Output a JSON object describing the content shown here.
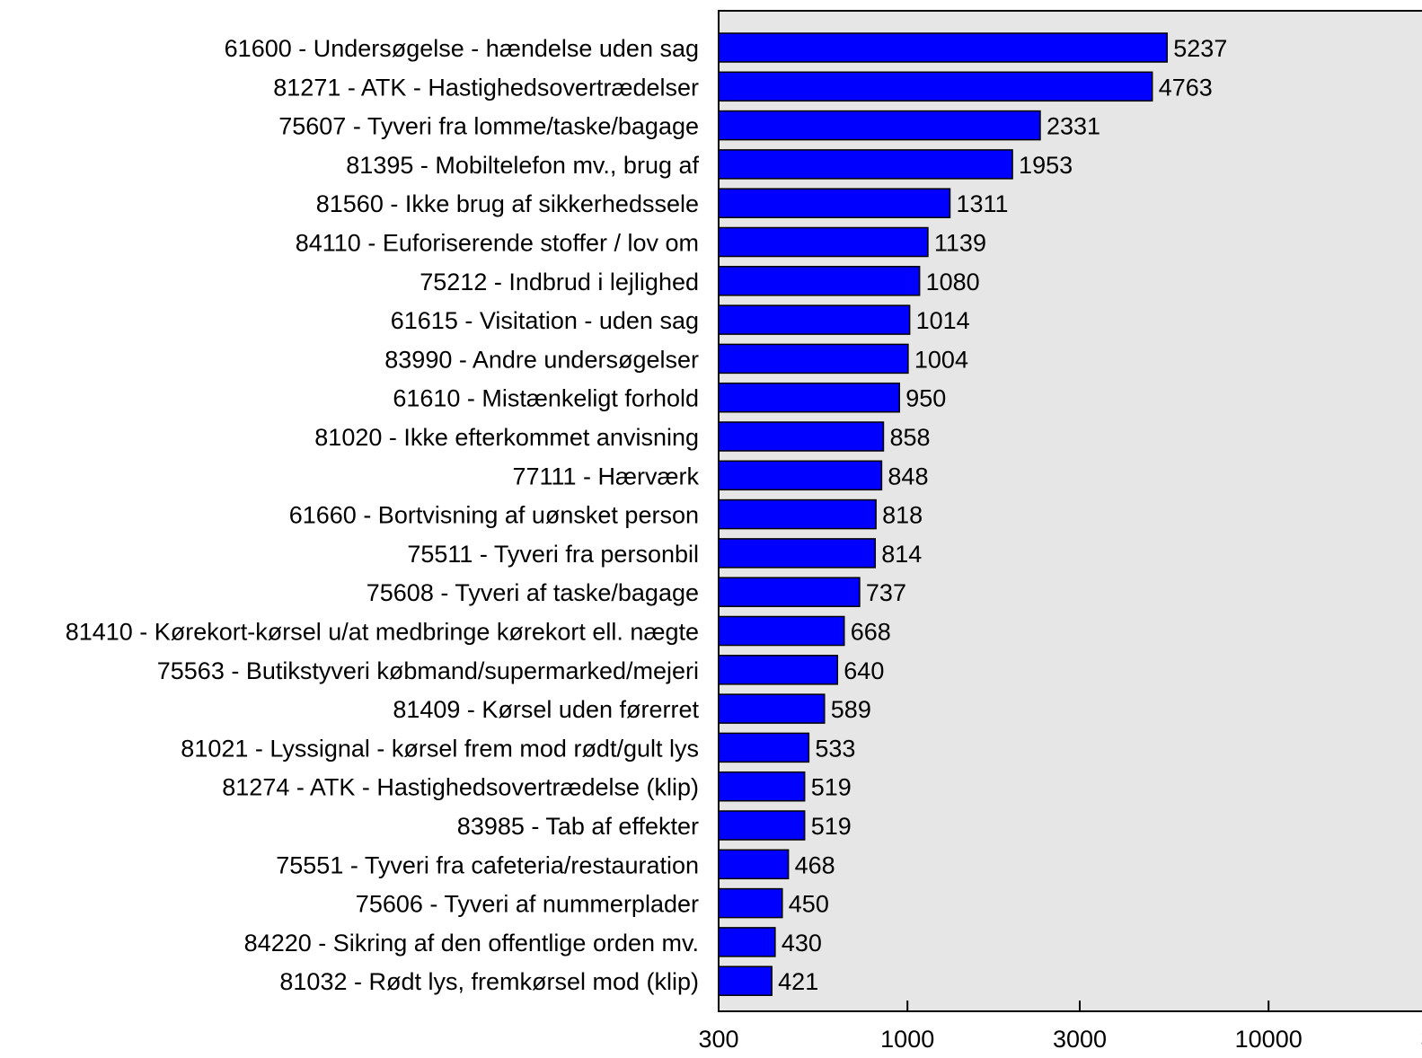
{
  "chart_data": {
    "type": "bar",
    "orientation": "horizontal",
    "x_scale": "log",
    "xlim": [
      300,
      30000
    ],
    "x_ticks": [
      "300",
      "1000",
      "3000",
      "10000",
      "300"
    ],
    "grid": false,
    "plot_background": "#e6e6e6",
    "bar_color": "#0000ff",
    "categories": [
      "61600 - Undersøgelse - hændelse uden sag",
      "81271 - ATK - Hastighedsovertrædelser",
      "75607 - Tyveri fra lomme/taske/bagage",
      "81395 - Mobiltelefon mv., brug af",
      "81560 - Ikke brug af sikkerhedssele",
      "84110 - Euforiserende stoffer / lov om",
      "75212 - Indbrud i lejlighed",
      "61615 - Visitation - uden sag",
      "83990 - Andre undersøgelser",
      "61610 - Mistænkeligt forhold",
      "81020 - Ikke efterkommet anvisning",
      "77111 - Hærværk",
      "61660 - Bortvisning af uønsket person",
      "75511 - Tyveri fra personbil",
      "75608 - Tyveri af taske/bagage",
      "81410 - Kørekort-kørsel u/at medbringe kørekort ell. nægte",
      "75563 - Butikstyveri købmand/supermarked/mejeri",
      "81409 - Kørsel uden førerret",
      "81021 - Lyssignal - kørsel frem  mod rødt/gult lys",
      "81274 - ATK - Hastighedsovertrædelse (klip)",
      "83985 - Tab af effekter",
      "75551 - Tyveri fra cafeteria/restauration",
      "75606 - Tyveri af nummerplader",
      "84220 - Sikring af den offentlige orden mv.",
      "81032 - Rødt lys, fremkørsel mod (klip)"
    ],
    "values": [
      5237,
      4763,
      2331,
      1953,
      1311,
      1139,
      1080,
      1014,
      1004,
      950,
      858,
      848,
      818,
      814,
      737,
      668,
      640,
      589,
      533,
      519,
      519,
      468,
      450,
      430,
      421
    ]
  }
}
